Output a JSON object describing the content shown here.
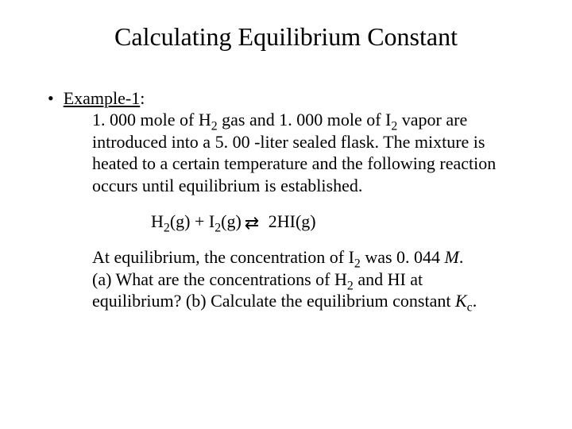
{
  "title": "Calculating Equilibrium Constant",
  "example_label": "Example-1",
  "colon": ":",
  "p1_a": "1. 000 mole of H",
  "p1_b": " gas and 1. 000 mole of I",
  "p1_c": " vapor are introduced into a 5. 00 -liter sealed flask. The mixture is heated to a certain temperature and the following reaction occurs until equilibrium is established.",
  "sub2": "2",
  "eq_h": "H",
  "eq_g1": "(g)",
  "eq_plus": "  +  ",
  "eq_i": "I",
  "eq_g2": "(g)",
  "eq_arrow": "⇄",
  "eq_rhs_coef": "  2",
  "eq_hi": "HI",
  "eq_g3": "(g)",
  "p2_a": "At equilibrium, the concentration of I",
  "p2_b": " was 0. 044 ",
  "p2_M": "M",
  "p2_c": ".",
  "p3_a": "(a) What are the concentrations of H",
  "p3_b": " and HI at equilibrium? (b) Calculate the equilibrium constant ",
  "p3_K": "K",
  "p3_csub": "c",
  "p3_end": "."
}
